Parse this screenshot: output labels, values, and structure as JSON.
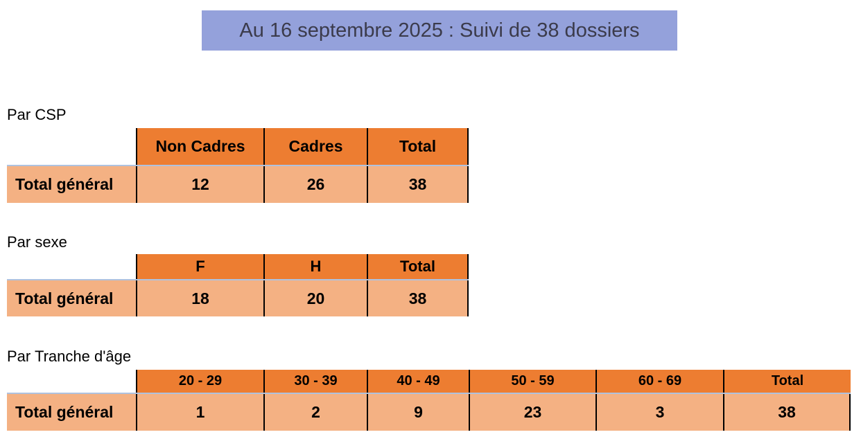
{
  "banner": {
    "text": "Au 16 septembre 2025 : Suivi de 38 dossiers",
    "bg_color": "#94A1DB",
    "text_color": "#3B3B4B"
  },
  "colors": {
    "header_orange": "#ED7D31",
    "row_peach": "#F4B183",
    "divider_blue": "#AFC2DF",
    "grid_black": "#000000"
  },
  "tables": [
    {
      "section_label": "Par CSP",
      "row_label": "Total général",
      "columns": [
        "Non Cadres",
        "Cadres",
        "Total"
      ],
      "values": [
        "12",
        "26",
        "38"
      ]
    },
    {
      "section_label": "Par sexe",
      "row_label": "Total général",
      "columns": [
        "F",
        "H",
        "Total"
      ],
      "values": [
        "18",
        "20",
        "38"
      ]
    },
    {
      "section_label": "Par Tranche d'âge",
      "row_label": "Total général",
      "columns": [
        "20 - 29",
        "30 - 39",
        "40 - 49",
        "50 - 59",
        "60 - 69",
        "Total"
      ],
      "values": [
        "1",
        "2",
        "9",
        "23",
        "3",
        "38"
      ]
    }
  ]
}
